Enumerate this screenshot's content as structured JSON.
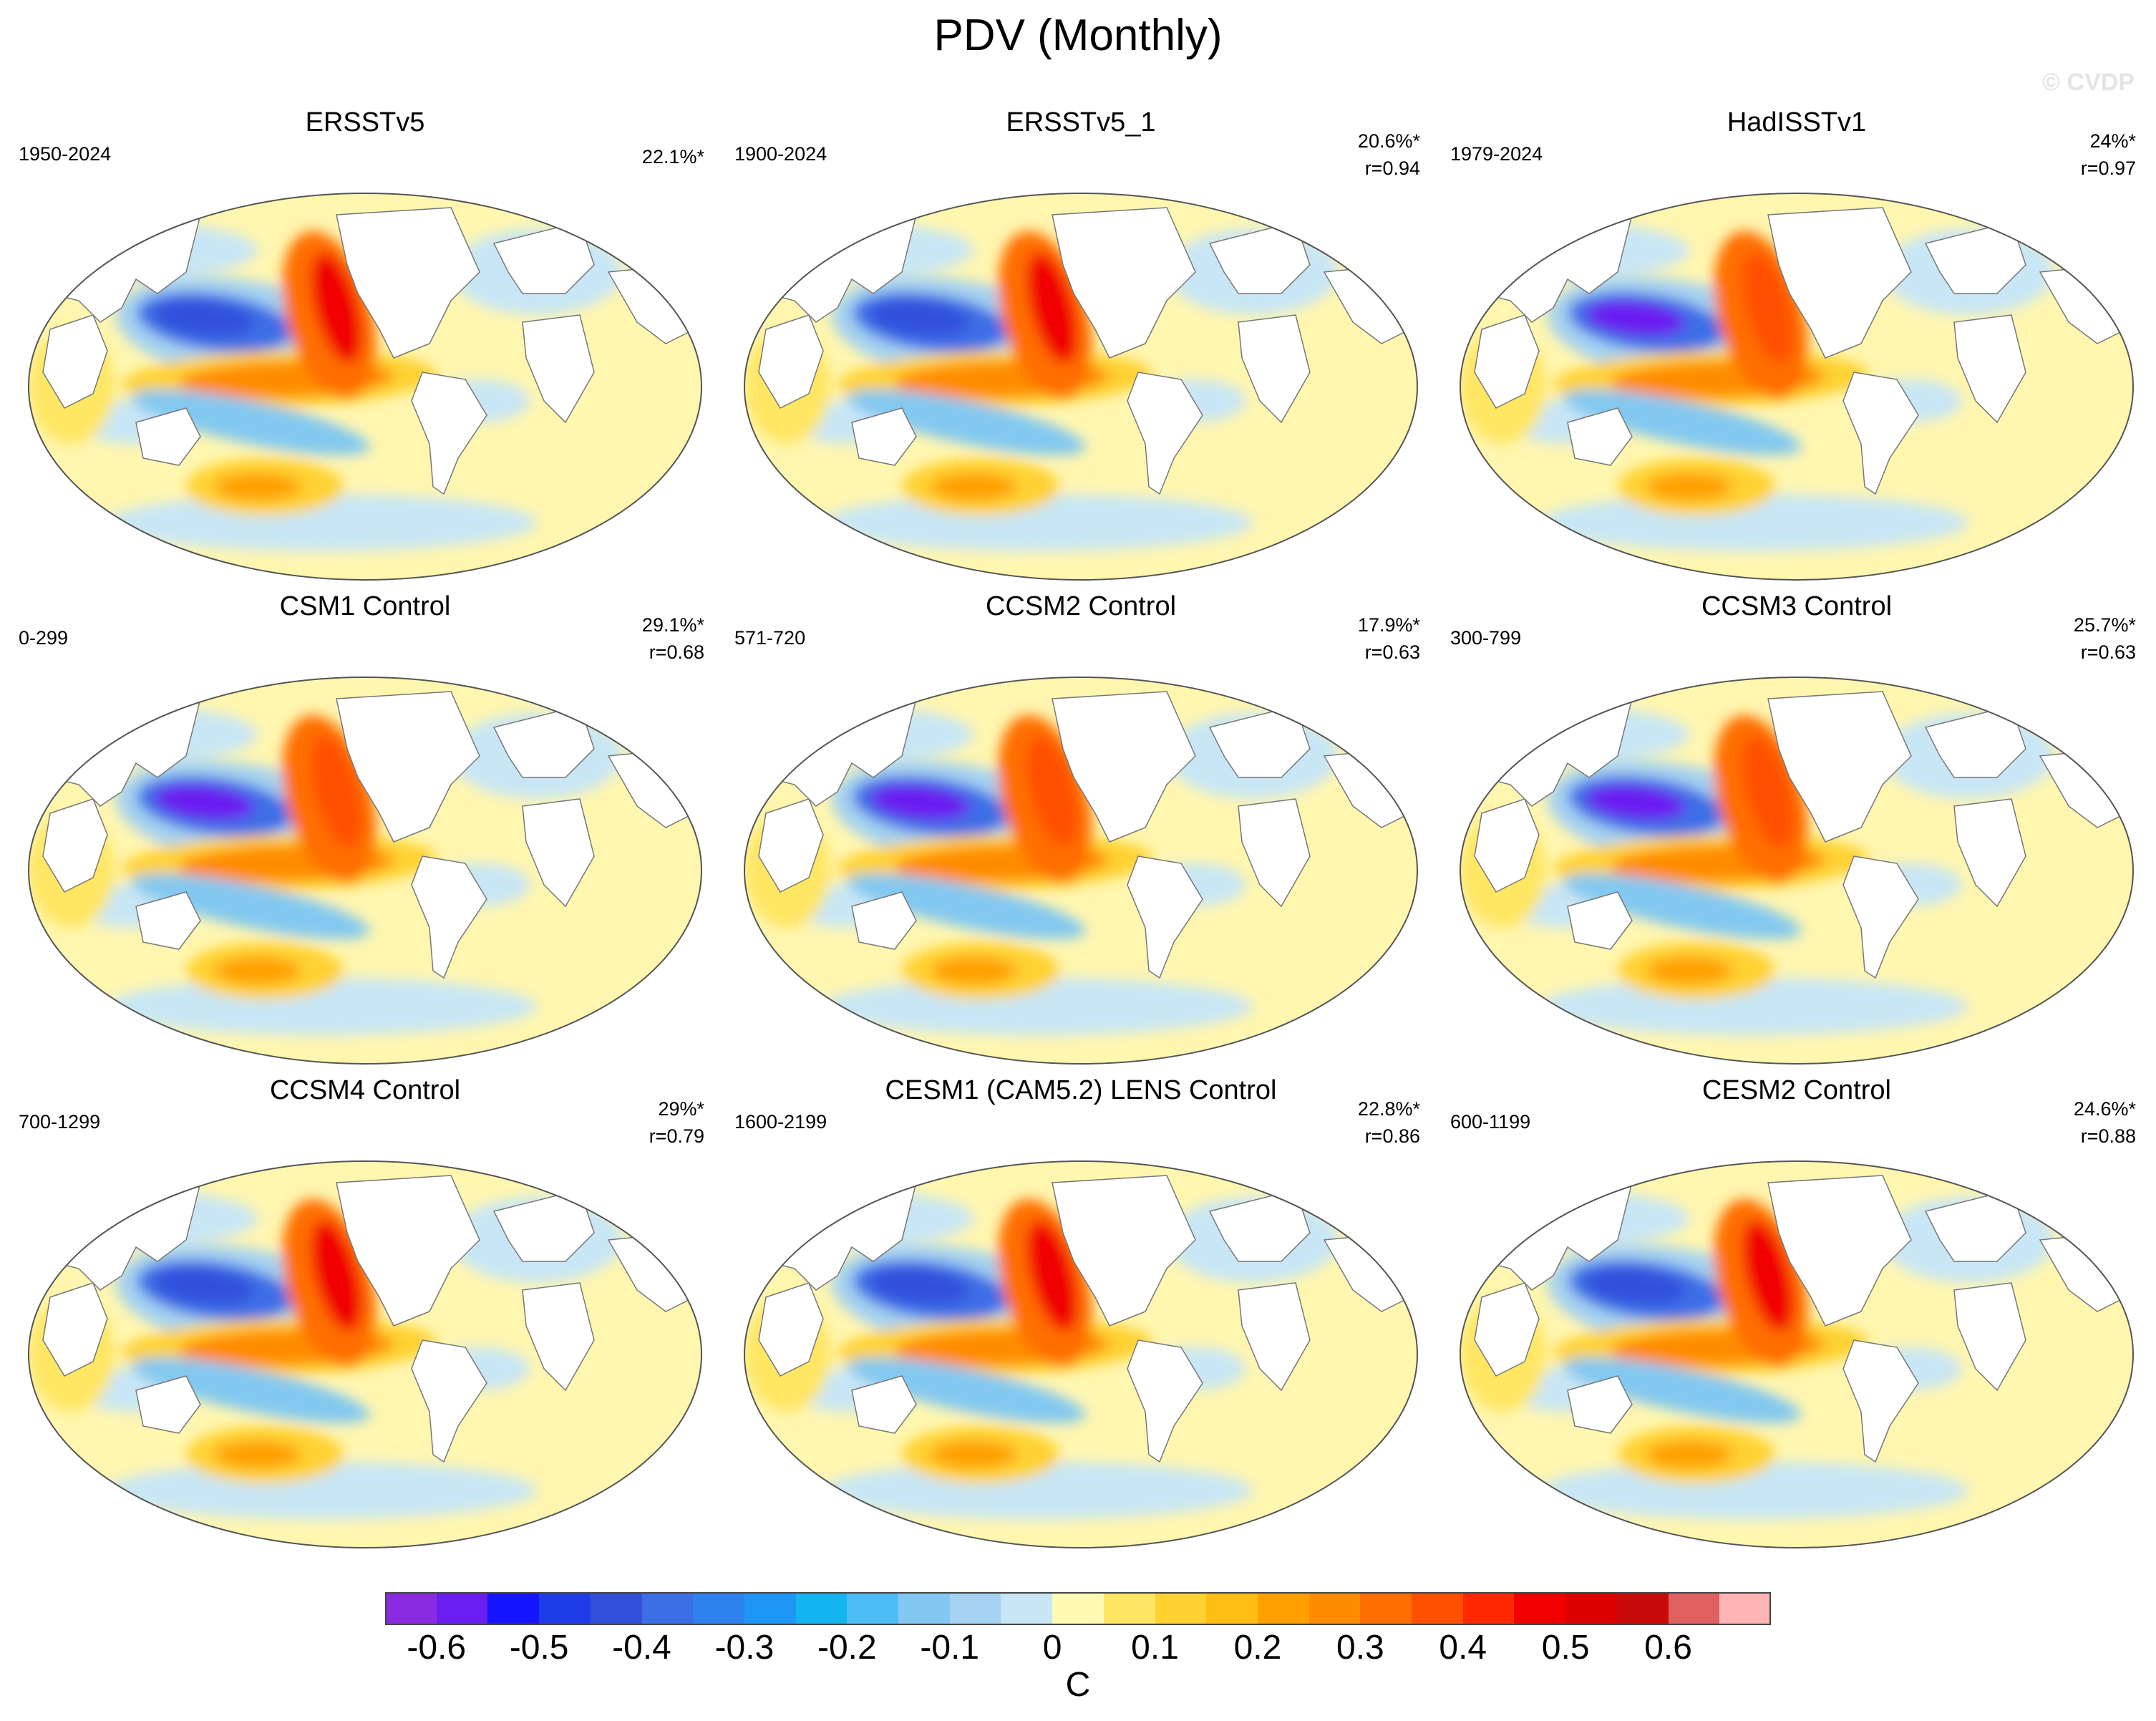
{
  "title": "PDV (Monthly)",
  "watermark": "© CVDP",
  "panels": [
    {
      "title": "ERSSTv5",
      "period": "1950-2024",
      "pct": "22.1%*",
      "r": ""
    },
    {
      "title": "ERSSTv5_1",
      "period": "1900-2024",
      "pct": "20.6%*",
      "r": "r=0.94"
    },
    {
      "title": "HadISSTv1",
      "period": "1979-2024",
      "pct": "24%*",
      "r": "r=0.97"
    },
    {
      "title": "CSM1 Control",
      "period": "0-299",
      "pct": "29.1%*",
      "r": "r=0.68"
    },
    {
      "title": "CCSM2 Control",
      "period": "571-720",
      "pct": "17.9%*",
      "r": "r=0.63"
    },
    {
      "title": "CCSM3 Control",
      "period": "300-799",
      "pct": "25.7%*",
      "r": "r=0.63"
    },
    {
      "title": "CCSM4 Control",
      "period": "700-1299",
      "pct": "29%*",
      "r": "r=0.79"
    },
    {
      "title": "CESM1 (CAM5.2) LENS Control",
      "period": "1600-2199",
      "pct": "22.8%*",
      "r": "r=0.86"
    },
    {
      "title": "CESM2 Control",
      "period": "600-1199",
      "pct": "24.6%*",
      "r": "r=0.88"
    }
  ],
  "colorbar": {
    "unit": "C",
    "labels": [
      "-0.6",
      "-0.5",
      "-0.4",
      "-0.3",
      "-0.2",
      "-0.1",
      "0",
      "0.1",
      "0.2",
      "0.3",
      "0.4",
      "0.5",
      "0.6"
    ],
    "colors": [
      "#8a2be2",
      "#6a1ef0",
      "#1414ff",
      "#1e3ce6",
      "#3250dc",
      "#3c6ee6",
      "#2e82f0",
      "#1e96f5",
      "#14b4f0",
      "#4bbef5",
      "#82c8f0",
      "#a5d2f0",
      "#c8e6f5",
      "#fffab4",
      "#ffe664",
      "#ffd232",
      "#ffbe14",
      "#ffa000",
      "#ff8c00",
      "#ff6e00",
      "#ff5000",
      "#ff2800",
      "#f00000",
      "#dc0000",
      "#c80a0a",
      "#e06060",
      "#ffb4b4"
    ]
  }
}
